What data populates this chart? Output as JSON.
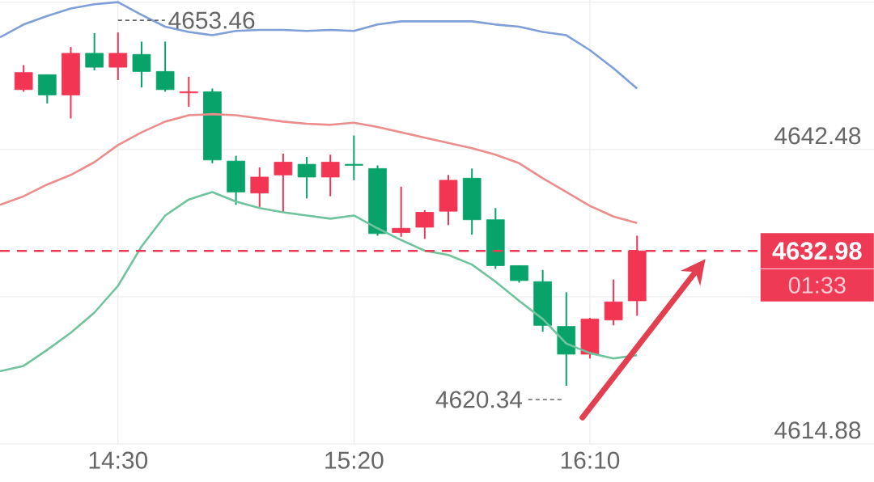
{
  "chart_data": {
    "type": "candlestick",
    "x": [
      14.1667,
      14.25,
      14.3333,
      14.4167,
      14.5,
      14.5833,
      14.6667,
      14.75,
      14.8333,
      14.9167,
      15.0,
      15.0833,
      15.1667,
      15.25,
      15.3333,
      15.4167,
      15.5,
      15.5833,
      15.6667,
      15.75,
      15.8333,
      15.9167,
      16.0,
      16.0833,
      16.1667,
      16.25,
      16.3333
    ],
    "ohlc": [
      [
        4648.1,
        4650.4,
        4647.9,
        4649.7
      ],
      [
        4649.5,
        4649.5,
        4646.8,
        4647.6
      ],
      [
        4647.6,
        4652.1,
        4645.4,
        4651.5
      ],
      [
        4651.5,
        4653.4,
        4649.9,
        4650.2
      ],
      [
        4650.2,
        4653.46,
        4649.0,
        4651.5
      ],
      [
        4651.4,
        4652.6,
        4648.3,
        4649.8
      ],
      [
        4649.8,
        4652.6,
        4647.9,
        4648.1
      ],
      [
        4647.8,
        4649.3,
        4646.5,
        4647.9
      ],
      [
        4647.9,
        4648.2,
        4641.2,
        4641.5
      ],
      [
        4641.4,
        4641.9,
        4637.3,
        4638.5
      ],
      [
        4638.4,
        4640.8,
        4637.1,
        4639.9
      ],
      [
        4640.1,
        4642.1,
        4636.6,
        4641.3
      ],
      [
        4641.1,
        4641.8,
        4637.9,
        4639.9
      ],
      [
        4639.9,
        4642.0,
        4638.1,
        4641.3
      ],
      [
        4641.1,
        4643.8,
        4639.6,
        4641.0
      ],
      [
        4640.7,
        4641.0,
        4634.4,
        4634.6
      ],
      [
        4634.7,
        4639.0,
        4634.3,
        4635.1
      ],
      [
        4635.2,
        4636.8,
        4634.1,
        4636.6
      ],
      [
        4636.7,
        4640.1,
        4635.4,
        4639.6
      ],
      [
        4639.8,
        4640.7,
        4634.5,
        4635.9
      ],
      [
        4635.9,
        4637.0,
        4631.3,
        4631.6
      ],
      [
        4631.6,
        4631.6,
        4630.0,
        4630.2
      ],
      [
        4630.1,
        4631.2,
        4625.4,
        4626.0
      ],
      [
        4625.9,
        4629.1,
        4620.34,
        4623.3
      ],
      [
        4623.3,
        4626.7,
        4622.9,
        4626.6
      ],
      [
        4626.5,
        4630.3,
        4626.0,
        4628.2
      ],
      [
        4628.3,
        4634.4,
        4626.9,
        4632.98
      ]
    ],
    "colors": [
      "#f23553",
      "#07a36a",
      "#f23553",
      "#07a36a",
      "#f23553",
      "#07a36a",
      "#07a36a",
      "#f23553",
      "#07a36a",
      "#07a36a",
      "#f23553",
      "#f23553",
      "#07a36a",
      "#f23553",
      "#07a36a",
      "#07a36a",
      "#f23553",
      "#f23553",
      "#f23553",
      "#07a36a",
      "#07a36a",
      "#07a36a",
      "#07a36a",
      "#07a36a",
      "#f23553",
      "#f23553",
      "#f23553"
    ],
    "series": [
      {
        "type": "line",
        "color": "#7f9fd8",
        "x": [
          14.0833,
          14.1667,
          14.25,
          14.3333,
          14.4167,
          14.5,
          14.5833,
          14.6667,
          14.75,
          14.8333,
          14.9167,
          15.0,
          15.0833,
          15.1667,
          15.25,
          15.3333,
          15.4167,
          15.5,
          15.5833,
          15.6667,
          15.75,
          15.8333,
          15.9167,
          16.0,
          16.0833,
          16.1667,
          16.25,
          16.3333
        ],
        "values": [
          4653.0,
          4654.2,
          4655.0,
          4655.7,
          4656.1,
          4656.3,
          4655.1,
          4654.0,
          4653.5,
          4653.2,
          4653.6,
          4653.7,
          4653.7,
          4653.6,
          4653.7,
          4653.6,
          4654.2,
          4654.5,
          4654.5,
          4654.5,
          4654.5,
          4654.2,
          4654.0,
          4653.5,
          4653.2,
          4651.8,
          4650.1,
          4648.2
        ]
      },
      {
        "type": "line",
        "color": "#ec8d8d",
        "x": [
          14.0833,
          14.1667,
          14.25,
          14.3333,
          14.4167,
          14.5,
          14.5833,
          14.6667,
          14.75,
          14.8333,
          14.9167,
          15.0,
          15.0833,
          15.1667,
          15.25,
          15.3333,
          15.4167,
          15.5,
          15.5833,
          15.6667,
          15.75,
          15.8333,
          15.9167,
          16.0,
          16.0833,
          16.1667,
          16.25,
          16.3333
        ],
        "values": [
          4637.3,
          4638.1,
          4639.2,
          4640.1,
          4641.3,
          4642.9,
          4644.1,
          4645.1,
          4645.7,
          4645.8,
          4645.7,
          4645.4,
          4645.1,
          4644.9,
          4644.8,
          4645.0,
          4644.6,
          4644.1,
          4643.6,
          4643.1,
          4642.6,
          4642.0,
          4641.2,
          4639.8,
          4638.5,
          4637.2,
          4636.2,
          4635.6
        ]
      },
      {
        "type": "line",
        "color": "#70c39d",
        "x": [
          14.0833,
          14.1667,
          14.25,
          14.3333,
          14.4167,
          14.5,
          14.5833,
          14.6667,
          14.75,
          14.8333,
          14.9167,
          15.0,
          15.0833,
          15.1667,
          15.25,
          15.3333,
          15.4167,
          15.5,
          15.5833,
          15.6667,
          15.75,
          15.8333,
          15.9167,
          16.0,
          16.0833,
          16.1667,
          16.25,
          16.3333
        ],
        "values": [
          4621.7,
          4622.2,
          4623.7,
          4625.3,
          4627.2,
          4629.7,
          4633.4,
          4636.3,
          4637.8,
          4638.5,
          4637.6,
          4637.0,
          4636.6,
          4636.3,
          4636.0,
          4636.3,
          4635.1,
          4634.0,
          4633.0,
          4632.6,
          4631.7,
          4630.1,
          4628.3,
          4626.6,
          4624.3,
          4623.4,
          4622.9,
          4623.2
        ]
      }
    ],
    "xlim": [
      14.0833,
      17.17
    ],
    "ylim": [
      4614.88,
      4656.5
    ],
    "xticks": [
      {
        "value": 14.5,
        "label": "14:30"
      },
      {
        "value": 15.3333,
        "label": "15:20"
      },
      {
        "value": 16.1667,
        "label": "16:10"
      }
    ],
    "yticks": [
      4614.88,
      {
        "value": 4628.68,
        "label": null
      },
      4642.48,
      {
        "value": 4656.28,
        "label": null
      }
    ],
    "grid": true,
    "ref_lines": [
      {
        "axis": "y",
        "value": 4632.98,
        "label": "4632.98",
        "color": "#ee3a55",
        "line_style": "dashed"
      }
    ],
    "annotations": [
      {
        "text": "4653.46",
        "x": 14.5,
        "y": 4653.46
      },
      {
        "text": "4620.34",
        "x": 16.0833,
        "y": 4620.34
      },
      "01:33"
    ]
  }
}
